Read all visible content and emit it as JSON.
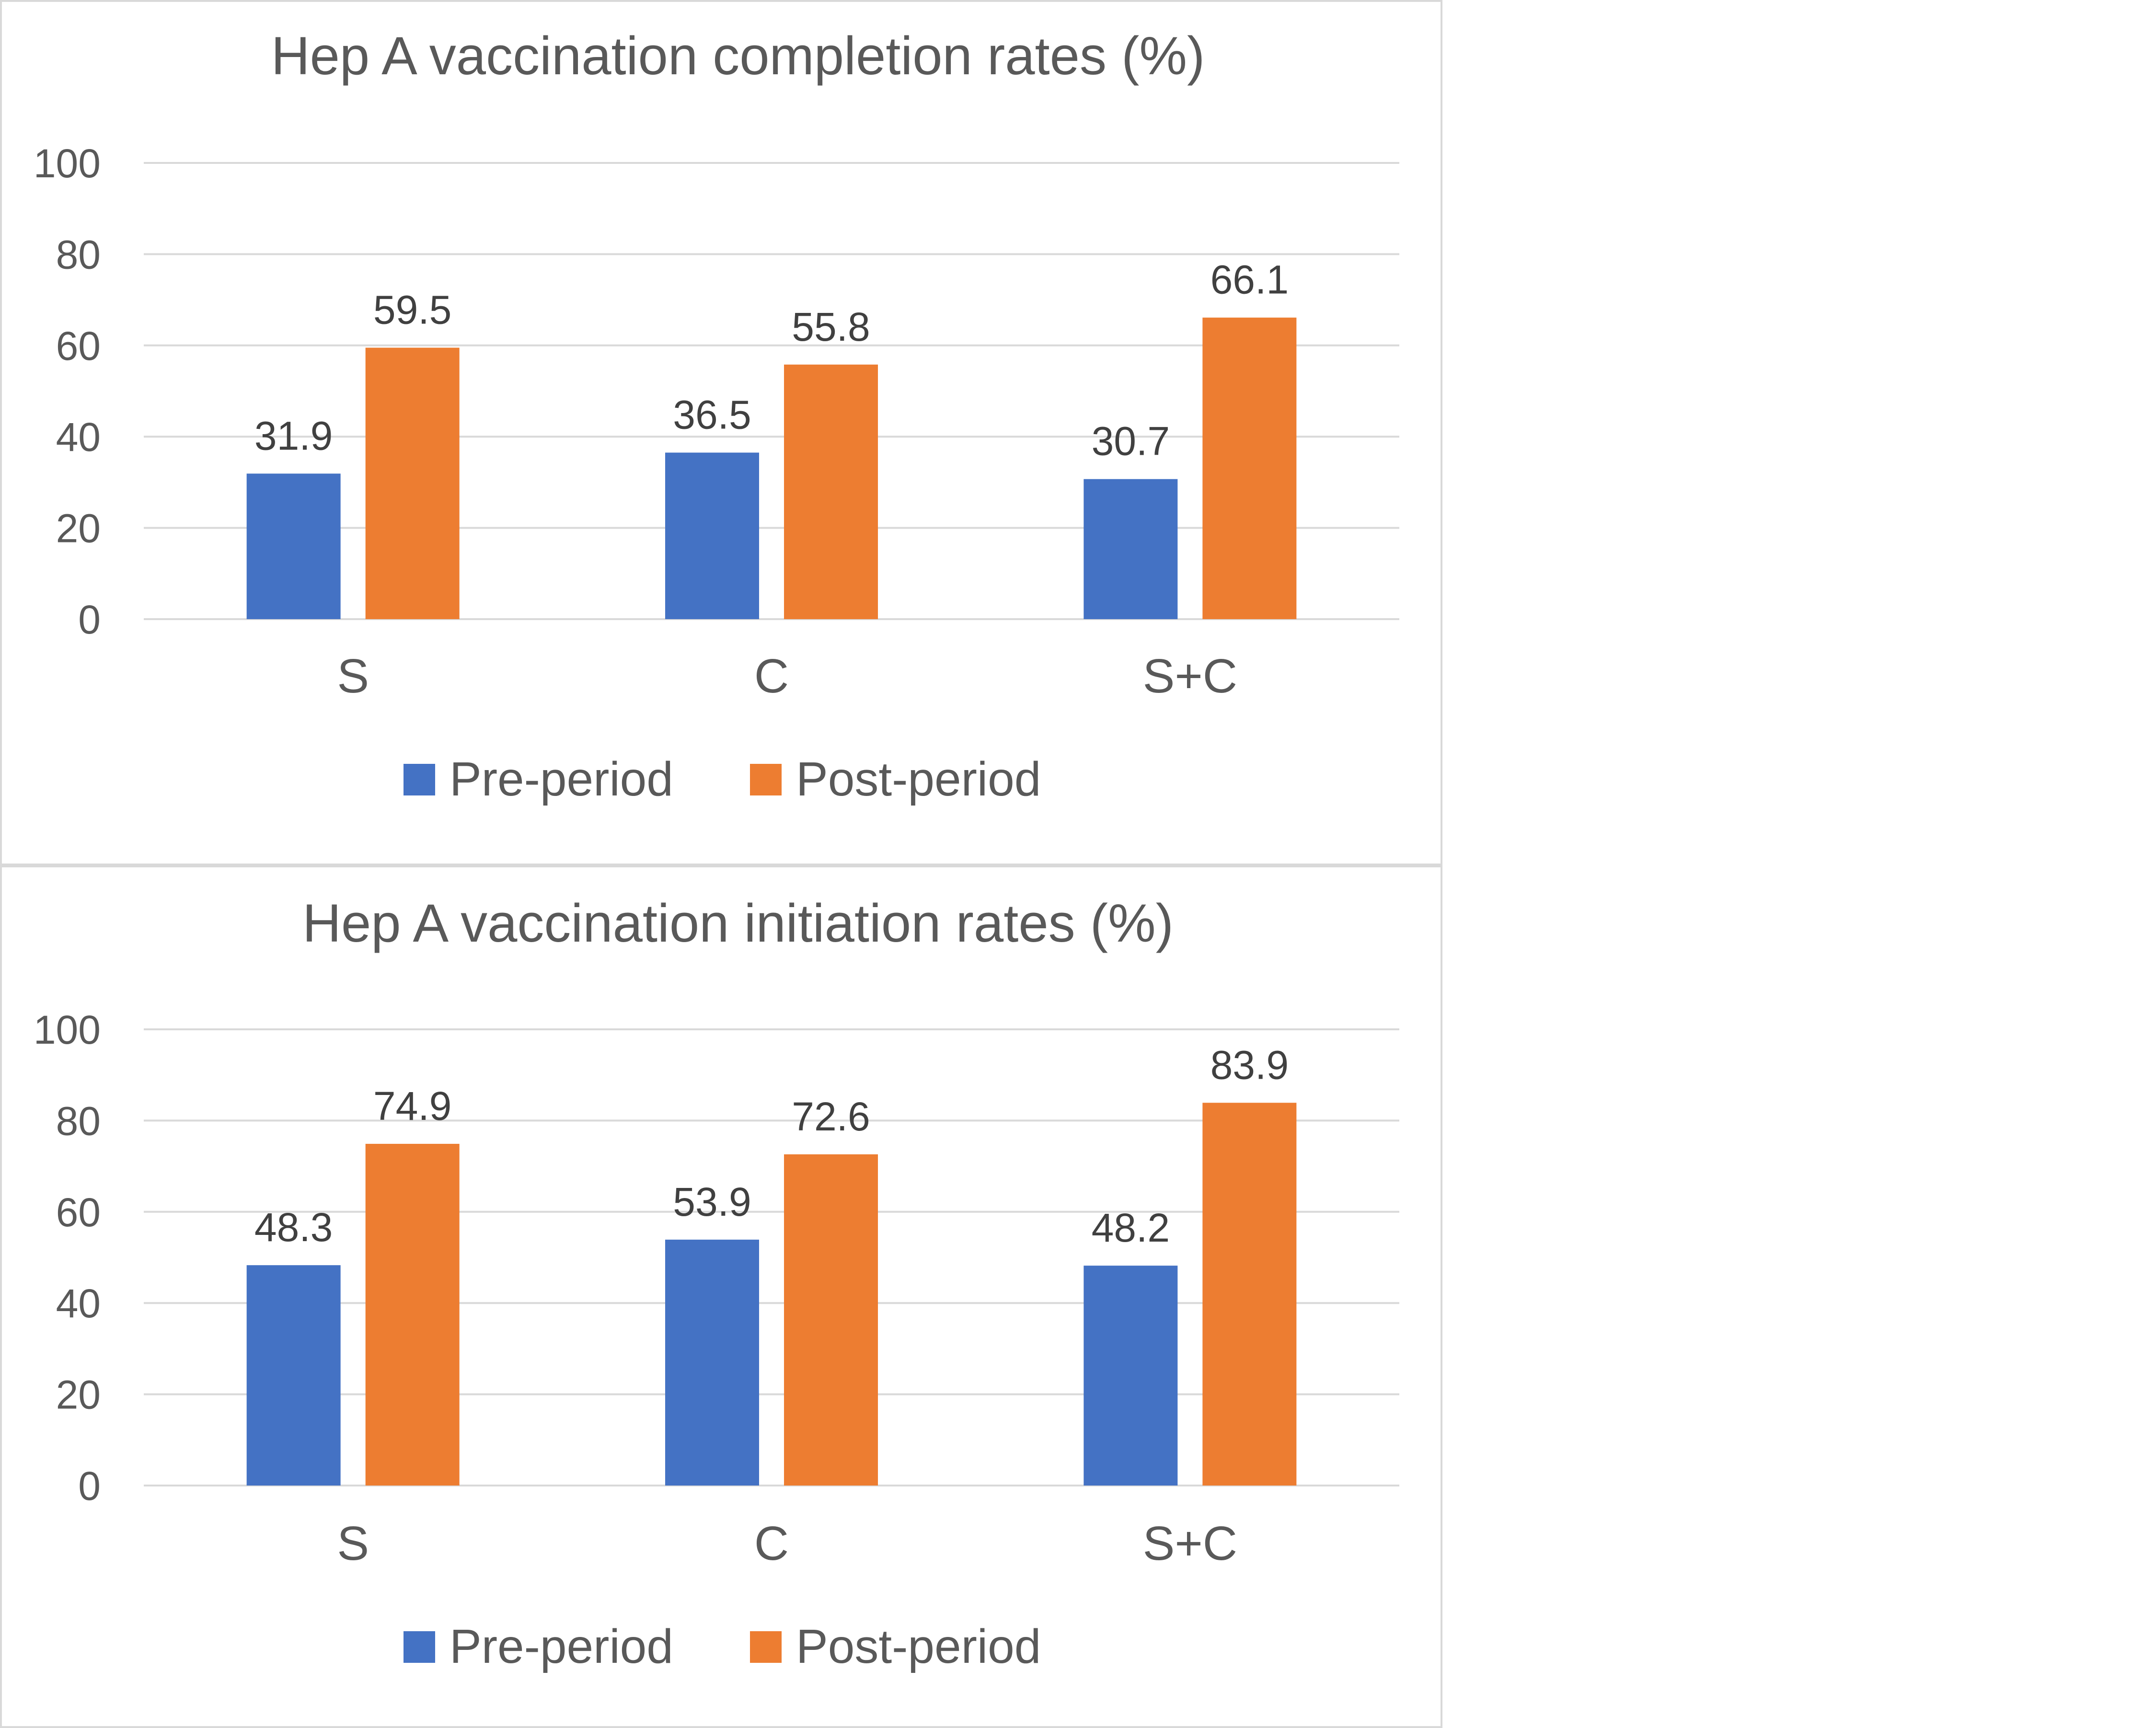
{
  "chart_data": [
    {
      "type": "bar",
      "title": "Hep A vaccination completion rates (%)",
      "xlabel": "",
      "ylabel": "",
      "categories": [
        "S",
        "C",
        "S+C"
      ],
      "series": [
        {
          "name": "Pre-period",
          "values": [
            31.9,
            36.5,
            30.7
          ],
          "color": "#4472c4"
        },
        {
          "name": "Post-period",
          "values": [
            59.5,
            55.8,
            66.1
          ],
          "color": "#ed7d31"
        }
      ],
      "ylim": [
        0,
        100
      ],
      "yticks": [
        0,
        20,
        40,
        60,
        80,
        100
      ],
      "grid": true,
      "legend": "bottom",
      "data_labels": true
    },
    {
      "type": "bar",
      "title": "Hep A vaccination initiation rates (%)",
      "xlabel": "",
      "ylabel": "",
      "categories": [
        "S",
        "C",
        "S+C"
      ],
      "series": [
        {
          "name": "Pre-period",
          "values": [
            48.3,
            53.9,
            48.2
          ],
          "color": "#4472c4"
        },
        {
          "name": "Post-period",
          "values": [
            74.9,
            72.6,
            83.9
          ],
          "color": "#ed7d31"
        }
      ],
      "ylim": [
        0,
        100
      ],
      "yticks": [
        0,
        20,
        40,
        60,
        80,
        100
      ],
      "grid": true,
      "legend": "bottom",
      "data_labels": true
    }
  ]
}
